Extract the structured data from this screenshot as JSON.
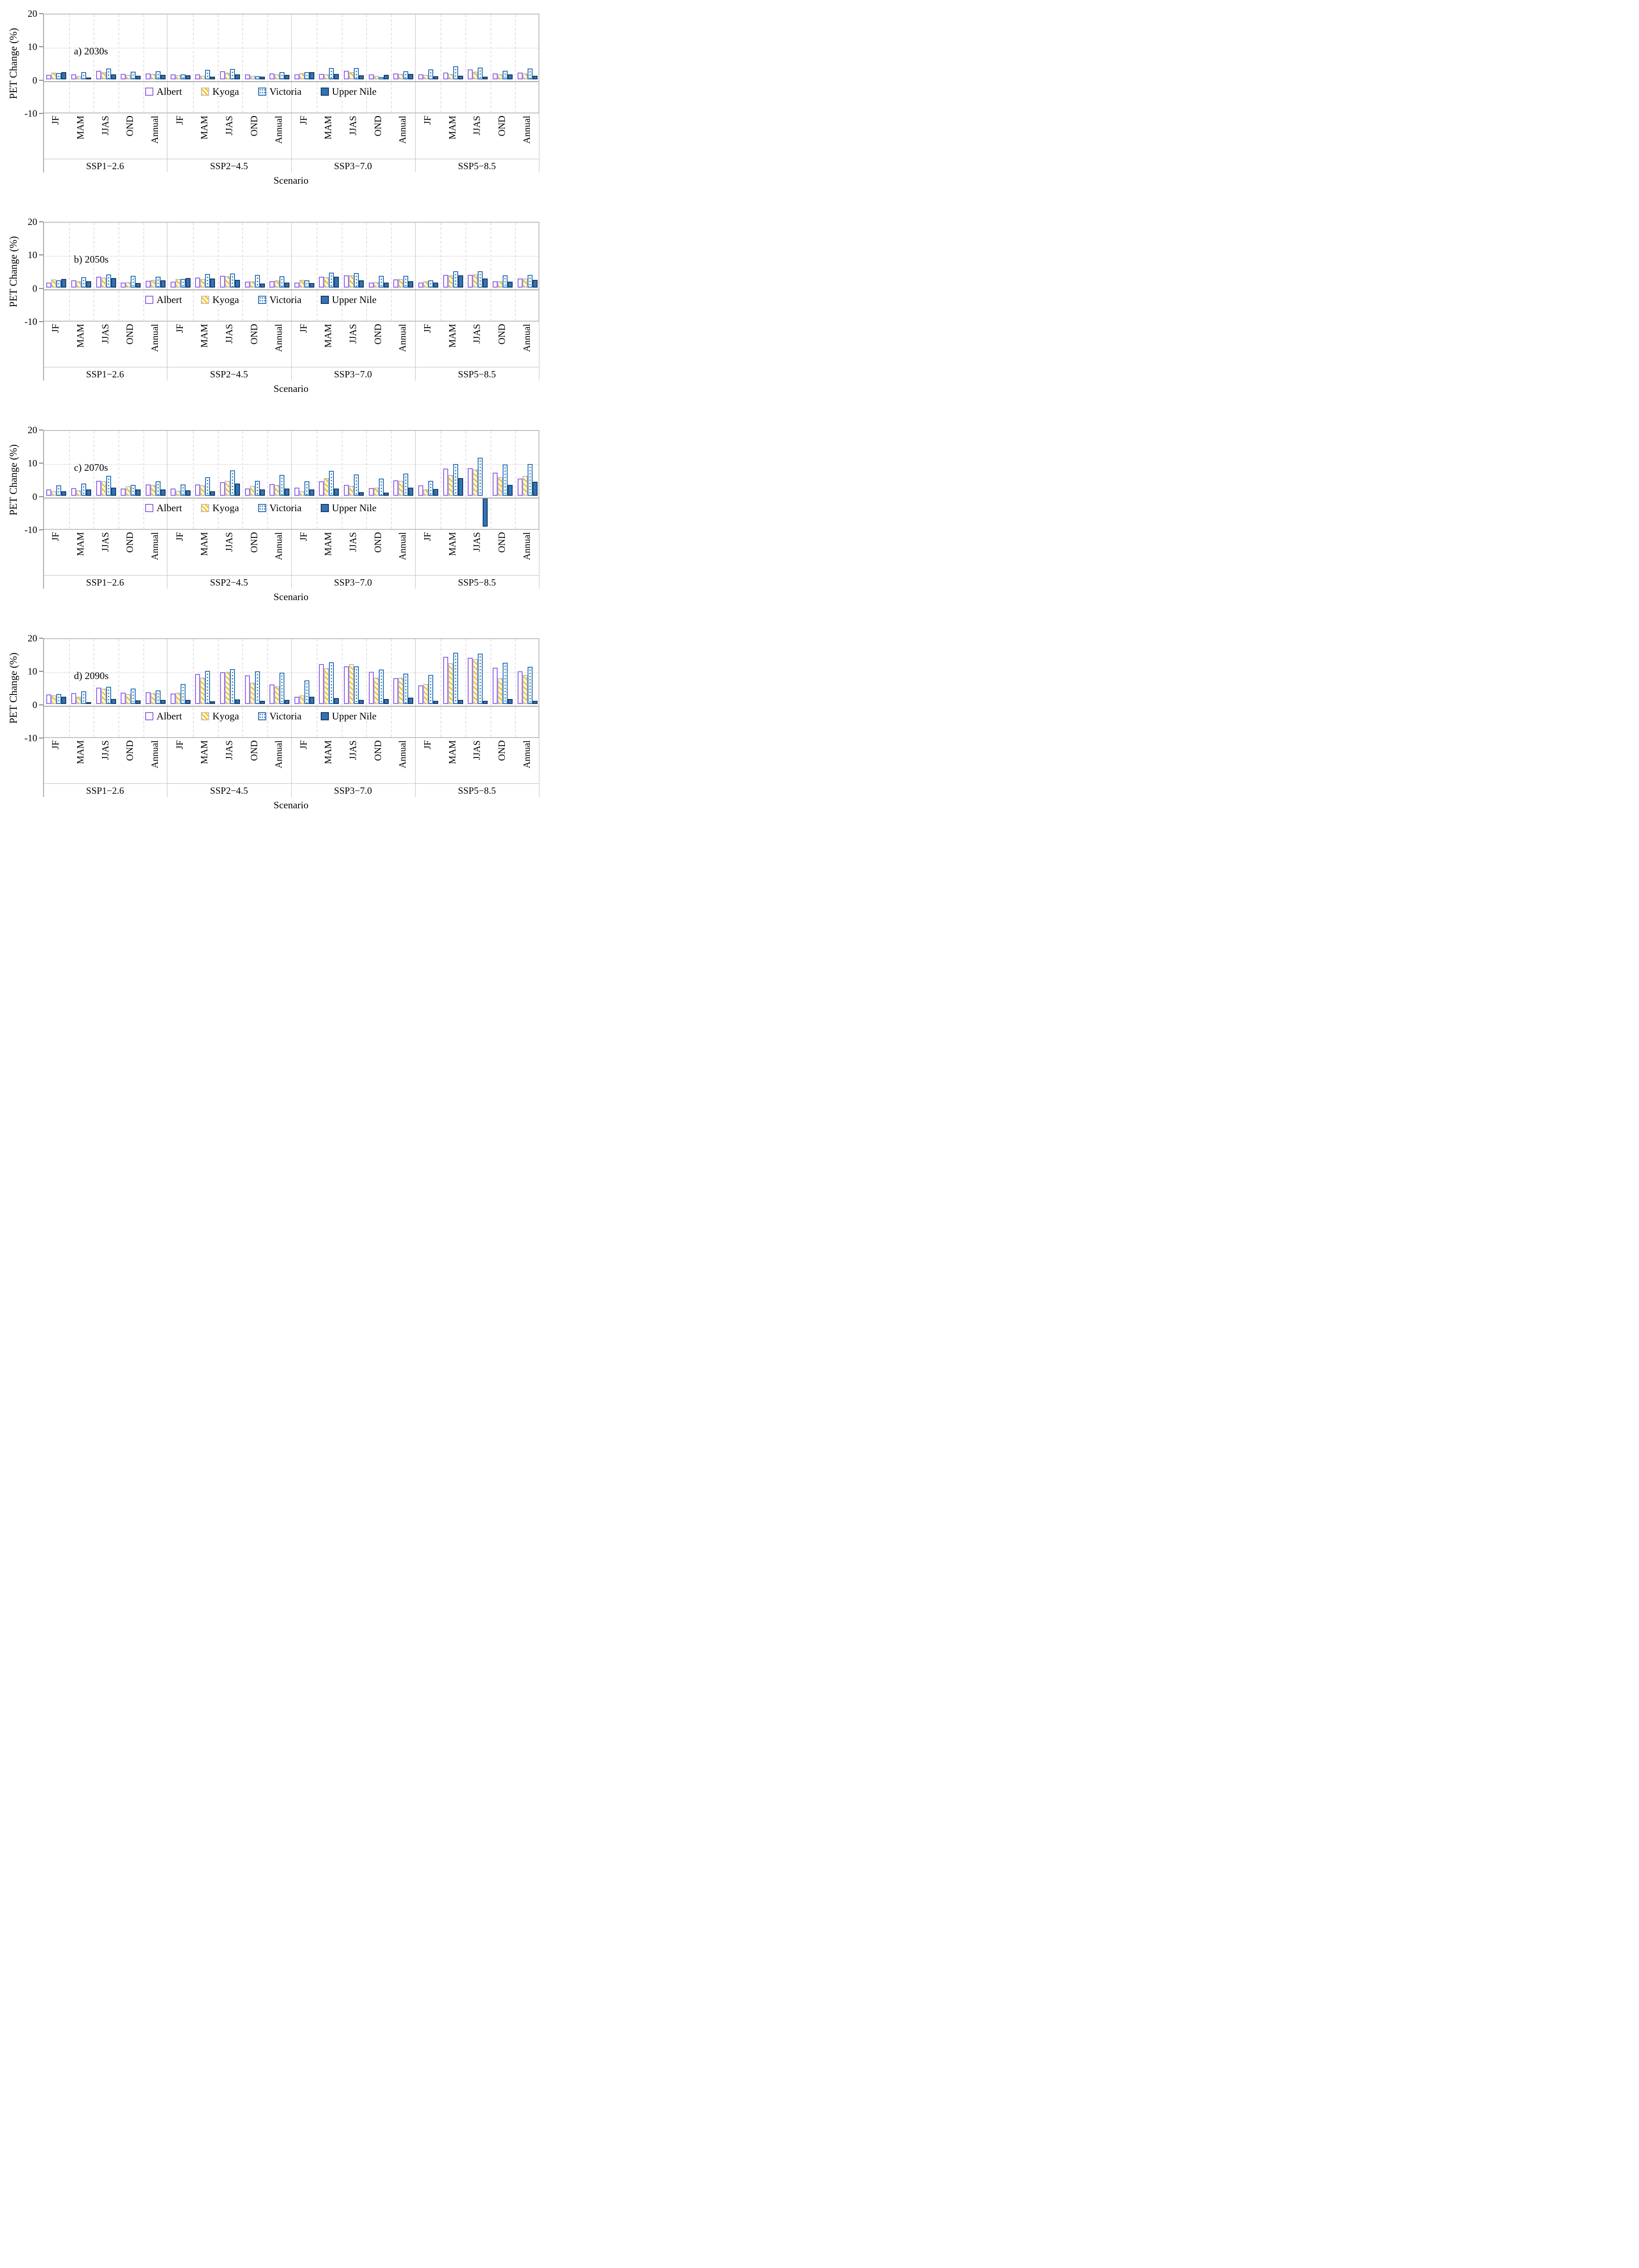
{
  "figure": {
    "background": "#ffffff",
    "colors": {
      "albert_border": "#9467F0",
      "kyoga_border": "#BFBFBF",
      "kyoga_hatch": "#FFC000",
      "victoria_blue": "#2E75B6",
      "upper_nile_fill": "#2E75B6",
      "upper_nile_border": "#1F3864",
      "axis_line": "#A6A6A6",
      "box_line": "#BFBFBF",
      "gridline": "#D9D9D9"
    }
  },
  "legend": {
    "items": [
      {
        "label": "Albert",
        "series": "albert",
        "swatch_icon": "purple-outline-square"
      },
      {
        "label": "Kyoga",
        "series": "kyoga",
        "swatch_icon": "yellow-hatch-square"
      },
      {
        "label": "Victoria",
        "series": "victoria",
        "swatch_icon": "blue-dotted-square"
      },
      {
        "label": "Upper Nile",
        "series": "uppernile",
        "swatch_icon": "solid-blue-square"
      }
    ]
  },
  "chart_data": [
    {
      "type": "bar",
      "panel": "a",
      "title": "a) 2030s",
      "ylabel": "PET Change (%)",
      "xlabel": "Scenario",
      "ylim": [
        -10,
        20
      ],
      "yticks": [
        20,
        10,
        0,
        -10
      ],
      "ytick_labels": [
        "20",
        "10",
        "0",
        "-10"
      ],
      "grid": "vertical-dashed-between-groups, dotted-line-at-10",
      "legend_position": "inside-below-zero-center",
      "seasons": [
        "JF",
        "MAM",
        "JJAS",
        "OND",
        "Annual"
      ],
      "scenarios": [
        "SSP1−2.6",
        "SSP2−4.5",
        "SSP3−7.0",
        "SSP5−8.5"
      ],
      "series": [
        {
          "name": "Albert",
          "values": [
            1.3,
            1.5,
            2.5,
            1.6,
            1.7,
            1.4,
            1.5,
            2.4,
            1.4,
            1.7,
            1.4,
            1.6,
            2.5,
            1.4,
            1.7,
            1.5,
            2.0,
            2.9,
            1.7,
            2.0
          ]
        },
        {
          "name": "Kyoga",
          "values": [
            2.0,
            0.9,
            2.2,
            1.3,
            1.6,
            1.2,
            1.0,
            2.0,
            1.1,
            1.4,
            1.9,
            1.4,
            2.2,
            1.0,
            1.6,
            1.3,
            1.6,
            2.3,
            1.5,
            1.7
          ]
        },
        {
          "name": "Victoria",
          "values": [
            1.8,
            2.2,
            3.2,
            2.3,
            2.4,
            1.4,
            2.8,
            3.1,
            0.9,
            2.1,
            2.1,
            3.3,
            3.4,
            0.7,
            2.4,
            2.9,
            3.9,
            3.5,
            2.5,
            3.2
          ]
        },
        {
          "name": "Upper Nile",
          "values": [
            2.2,
            0.4,
            1.4,
            1.1,
            1.3,
            1.2,
            0.8,
            1.4,
            0.8,
            1.3,
            2.2,
            1.6,
            1.2,
            1.3,
            1.6,
            0.9,
            1.1,
            0.8,
            1.4,
            1.0
          ]
        }
      ]
    },
    {
      "type": "bar",
      "panel": "b",
      "title": "b) 2050s",
      "ylabel": "PET Change (%)",
      "xlabel": "Scenario",
      "ylim": [
        -10,
        20
      ],
      "yticks": [
        20,
        10,
        0,
        -10
      ],
      "ytick_labels": [
        "20",
        "10",
        "0",
        "-10"
      ],
      "grid": "vertical-dashed-between-groups, dotted-line-at-10",
      "legend_position": "inside-below-zero-center",
      "seasons": [
        "JF",
        "MAM",
        "JJAS",
        "OND",
        "Annual"
      ],
      "scenarios": [
        "SSP1−2.6",
        "SSP2−4.5",
        "SSP3−7.0",
        "SSP5−8.5"
      ],
      "series": [
        {
          "name": "Albert",
          "values": [
            1.5,
            2.1,
            3.2,
            1.4,
            2.0,
            1.7,
            2.9,
            3.5,
            1.7,
            1.8,
            1.4,
            3.2,
            3.6,
            1.4,
            2.4,
            1.5,
            3.8,
            3.8,
            1.9,
            2.7
          ]
        },
        {
          "name": "Kyoga",
          "values": [
            2.4,
            1.9,
            3.0,
            1.6,
            2.3,
            2.6,
            2.6,
            3.4,
            1.8,
            2.1,
            2.3,
            3.1,
            3.7,
            1.6,
            2.6,
            1.9,
            3.7,
            3.9,
            1.8,
            2.7
          ]
        },
        {
          "name": "Victoria",
          "values": [
            2.2,
            3.1,
            3.9,
            3.5,
            3.2,
            2.5,
            4.0,
            4.2,
            3.8,
            3.3,
            2.2,
            4.4,
            4.3,
            3.5,
            3.5,
            2.1,
            4.9,
            4.8,
            3.6,
            3.8
          ]
        },
        {
          "name": "Upper Nile",
          "values": [
            2.6,
            1.8,
            2.8,
            1.3,
            2.1,
            2.8,
            2.7,
            2.3,
            1.2,
            1.5,
            1.3,
            3.2,
            2.2,
            1.5,
            1.9,
            1.4,
            3.6,
            2.7,
            1.7,
            2.3
          ]
        }
      ]
    },
    {
      "type": "bar",
      "panel": "c",
      "title": "c) 2070s",
      "ylabel": "PET Change (%)",
      "xlabel": "Scenario",
      "ylim": [
        -10,
        20
      ],
      "yticks": [
        20,
        10,
        0,
        -10
      ],
      "ytick_labels": [
        "20",
        "10",
        "0",
        "-10"
      ],
      "grid": "vertical-dashed-between-groups, dotted-line-at-10",
      "legend_position": "inside-below-zero-center",
      "seasons": [
        "JF",
        "MAM",
        "JJAS",
        "OND",
        "Annual"
      ],
      "scenarios": [
        "SSP1−2.6",
        "SSP2−4.5",
        "SSP3−7.0",
        "SSP5−8.5"
      ],
      "series": [
        {
          "name": "Albert",
          "values": [
            1.8,
            2.3,
            4.4,
            2.1,
            3.3,
            2.1,
            3.4,
            4.0,
            2.2,
            3.5,
            2.4,
            4.3,
            3.2,
            2.3,
            4.6,
            3.1,
            8.2,
            8.3,
            6.9,
            5.1
          ]
        },
        {
          "name": "Kyoga",
          "values": [
            1.3,
            1.6,
            4.3,
            2.8,
            3.2,
            1.5,
            3.1,
            4.4,
            2.9,
            3.2,
            1.3,
            5.3,
            3.0,
            2.4,
            4.5,
            1.9,
            6.2,
            7.8,
            5.6,
            5.9
          ]
        },
        {
          "name": "Victoria",
          "values": [
            3.1,
            3.6,
            5.9,
            3.2,
            4.3,
            3.3,
            5.6,
            7.6,
            4.4,
            6.2,
            4.3,
            7.4,
            6.4,
            5.2,
            6.7,
            4.5,
            9.5,
            11.4,
            9.4,
            9.5
          ]
        },
        {
          "name": "Upper Nile",
          "values": [
            1.3,
            1.8,
            2.4,
            1.8,
            1.9,
            1.6,
            1.3,
            3.6,
            1.9,
            2.2,
            1.8,
            2.2,
            1.1,
            0.9,
            2.4,
            2.0,
            5.3,
            -8.6,
            3.2,
            4.2
          ]
        }
      ]
    },
    {
      "type": "bar",
      "panel": "d",
      "title": "d) 2090s",
      "ylabel": "PET Change (%)",
      "xlabel": "Scenario",
      "ylim": [
        -10,
        20
      ],
      "yticks": [
        20,
        10,
        0,
        -10
      ],
      "ytick_labels": [
        "20",
        "10",
        "0",
        "-10"
      ],
      "grid": "vertical-dashed-between-groups, dotted-line-at-10",
      "legend_position": "inside-below-zero-center",
      "seasons": [
        "JF",
        "MAM",
        "JJAS",
        "OND",
        "Annual"
      ],
      "scenarios": [
        "SSP1−2.6",
        "SSP2−4.5",
        "SSP3−7.0",
        "SSP5−8.5"
      ],
      "series": [
        {
          "name": "Albert",
          "values": [
            2.8,
            3.2,
            4.9,
            3.4,
            3.5,
            3.1,
            9.0,
            9.5,
            8.5,
            5.8,
            2.2,
            11.9,
            11.3,
            9.6,
            7.7,
            5.6,
            14.1,
            13.9,
            10.8,
            9.8
          ]
        },
        {
          "name": "Kyoga",
          "values": [
            2.5,
            2.2,
            4.6,
            3.0,
            3.2,
            3.3,
            7.8,
            9.6,
            6.4,
            5.3,
            2.6,
            10.7,
            12.0,
            7.9,
            7.8,
            6.0,
            12.2,
            13.5,
            7.7,
            8.7
          ]
        },
        {
          "name": "Victoria",
          "values": [
            2.9,
            3.8,
            5.2,
            4.6,
            4.0,
            6.0,
            9.9,
            10.4,
            9.8,
            9.4,
            7.1,
            12.5,
            11.3,
            10.3,
            9.1,
            8.7,
            15.4,
            15.1,
            12.3,
            11.1
          ]
        },
        {
          "name": "Upper Nile",
          "values": [
            2.2,
            0.4,
            1.4,
            1.1,
            1.2,
            1.2,
            0.8,
            1.3,
            0.9,
            1.2,
            2.2,
            1.7,
            1.2,
            1.5,
            1.8,
            0.9,
            1.2,
            0.9,
            1.4,
            0.9
          ]
        }
      ]
    }
  ]
}
